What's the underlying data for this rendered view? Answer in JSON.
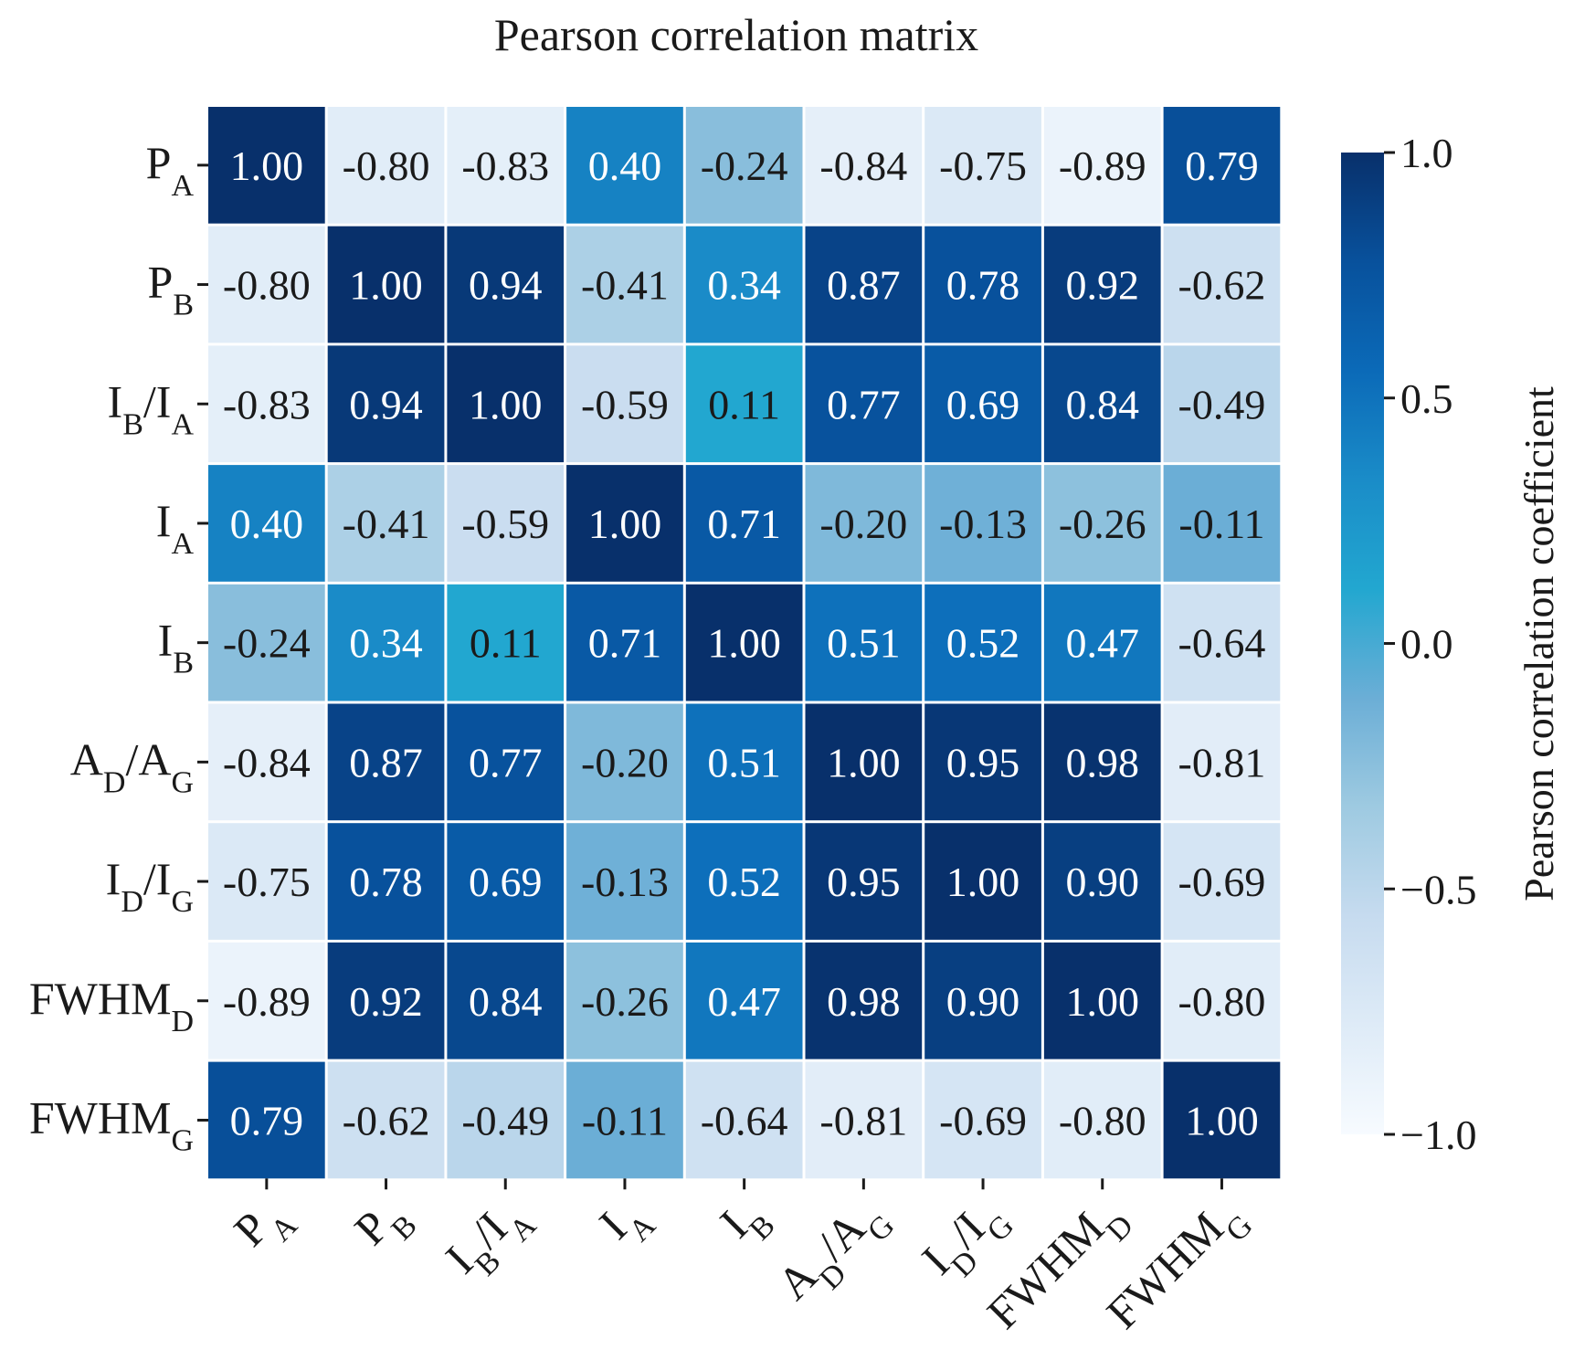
{
  "chart_data": {
    "type": "heatmap",
    "title": "Pearson correlation matrix",
    "rows": [
      {
        "base": "P",
        "sub": "A"
      },
      {
        "base": "P",
        "sub": "B"
      },
      {
        "base": "I",
        "sub": "B",
        "base2": "I",
        "sub2": "A"
      },
      {
        "base": "I",
        "sub": "A"
      },
      {
        "base": "I",
        "sub": "B"
      },
      {
        "base": "A",
        "sub": "D",
        "base2": "A",
        "sub2": "G"
      },
      {
        "base": "I",
        "sub": "D",
        "base2": "I",
        "sub2": "G"
      },
      {
        "base": "FWHM",
        "sub": "D"
      },
      {
        "base": "FWHM",
        "sub": "G"
      }
    ],
    "columns": [
      {
        "base": "P",
        "sub": "A"
      },
      {
        "base": "P",
        "sub": "B"
      },
      {
        "base": "I",
        "sub": "B",
        "base2": "I",
        "sub2": "A"
      },
      {
        "base": "I",
        "sub": "A"
      },
      {
        "base": "I",
        "sub": "B"
      },
      {
        "base": "A",
        "sub": "D",
        "base2": "A",
        "sub2": "G"
      },
      {
        "base": "I",
        "sub": "D",
        "base2": "I",
        "sub2": "G"
      },
      {
        "base": "FWHM",
        "sub": "D"
      },
      {
        "base": "FWHM",
        "sub": "G"
      }
    ],
    "values": [
      [
        1.0,
        -0.8,
        -0.83,
        0.4,
        -0.24,
        -0.84,
        -0.75,
        -0.89,
        0.79
      ],
      [
        -0.8,
        1.0,
        0.94,
        -0.41,
        0.34,
        0.87,
        0.78,
        0.92,
        -0.62
      ],
      [
        -0.83,
        0.94,
        1.0,
        -0.59,
        0.11,
        0.77,
        0.69,
        0.84,
        -0.49
      ],
      [
        0.4,
        -0.41,
        -0.59,
        1.0,
        0.71,
        -0.2,
        -0.13,
        -0.26,
        -0.11
      ],
      [
        -0.24,
        0.34,
        0.11,
        0.71,
        1.0,
        0.51,
        0.52,
        0.47,
        -0.64
      ],
      [
        -0.84,
        0.87,
        0.77,
        -0.2,
        0.51,
        1.0,
        0.95,
        0.98,
        -0.81
      ],
      [
        -0.75,
        0.78,
        0.69,
        -0.13,
        0.52,
        0.95,
        1.0,
        0.9,
        -0.69
      ],
      [
        -0.89,
        0.92,
        0.84,
        -0.26,
        0.47,
        0.98,
        0.9,
        1.0,
        -0.8
      ],
      [
        0.79,
        -0.62,
        -0.49,
        -0.11,
        -0.64,
        -0.81,
        -0.69,
        -0.8,
        1.0
      ]
    ],
    "colorbar": {
      "label": "Pearson correlation coefficient",
      "vmin": -1.0,
      "vmax": 1.0,
      "ticks": [
        1.0,
        0.5,
        0.0,
        -0.5,
        -1.0
      ],
      "tick_labels": [
        "1.0",
        "0.5",
        "0.0",
        "−0.5",
        "−1.0"
      ]
    },
    "colormap": [
      "#f7fbff",
      "#deebf7",
      "#c6dbef",
      "#9ecae1",
      "#6baed6",
      "#22a7d0",
      "#1a8cc8",
      "#0b6ab8",
      "#08519c",
      "#08306b"
    ],
    "light_text_color": "#ffffff",
    "dark_text_color": "#1a1a1a"
  }
}
